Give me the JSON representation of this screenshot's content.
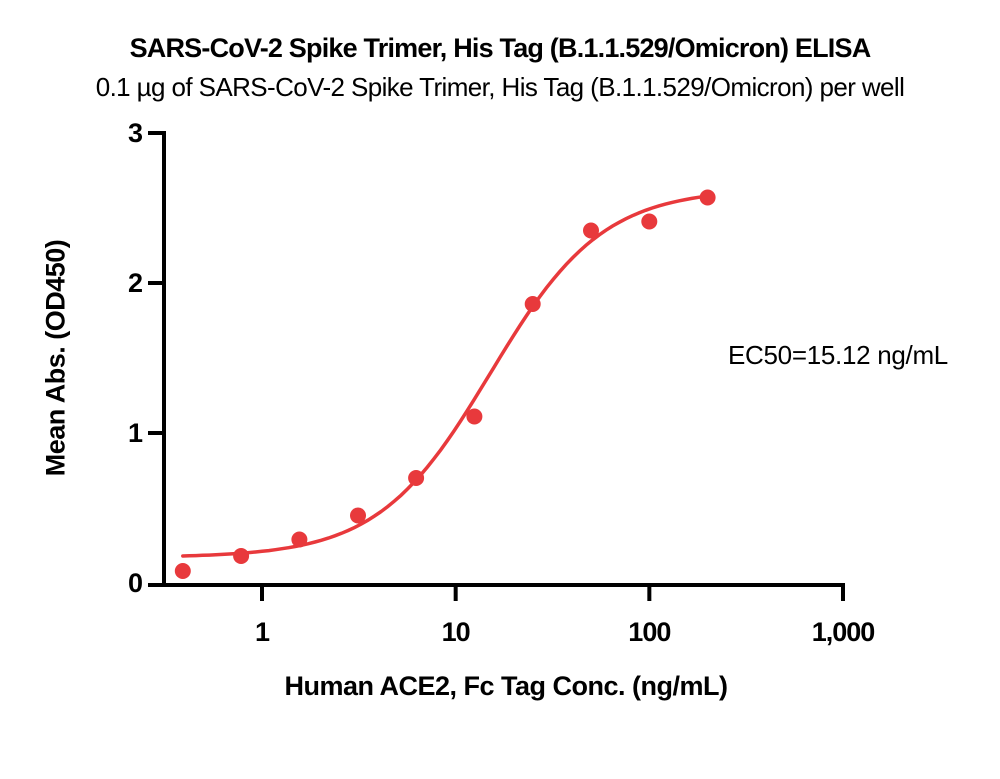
{
  "colors": {
    "series": "#E8393C",
    "axis": "#000000",
    "text": "#000000",
    "background": "#FFFFFF"
  },
  "chart_data": {
    "type": "scatter",
    "title": "SARS-CoV-2 Spike Trimer, His Tag (B.1.1.529/Omicron) ELISA",
    "subtitle": "0.1 µg of SARS-CoV-2 Spike Trimer, His Tag (B.1.1.529/Omicron) per well",
    "xlabel": "Human ACE2, Fc Tag Conc. (ng/mL)",
    "ylabel": "Mean Abs. (OD450)",
    "x_scale": "log10",
    "xlim": [
      0.31,
      1000
    ],
    "ylim": [
      0,
      3
    ],
    "grid": false,
    "legend": "none",
    "x_ticks": [
      {
        "value": 1,
        "label": "1"
      },
      {
        "value": 10,
        "label": "10"
      },
      {
        "value": 100,
        "label": "100"
      },
      {
        "value": 1000,
        "label": "1,000"
      }
    ],
    "y_ticks": [
      {
        "value": 0,
        "label": "0"
      },
      {
        "value": 1,
        "label": "1"
      },
      {
        "value": 2,
        "label": "2"
      },
      {
        "value": 3,
        "label": "3"
      }
    ],
    "series": [
      {
        "marker": "circle",
        "color": "#E8393C",
        "x": [
          0.39,
          0.78,
          1.56,
          3.13,
          6.25,
          12.5,
          25,
          50,
          100,
          200
        ],
        "y": [
          0.08,
          0.18,
          0.29,
          0.45,
          0.7,
          1.11,
          1.86,
          2.35,
          2.41,
          2.57
        ]
      }
    ],
    "fit_curve": {
      "model": "4PL",
      "bottom": 0.17,
      "top": 2.63,
      "ec50": 15.12,
      "hill": 1.5,
      "x_range": [
        0.39,
        210
      ]
    },
    "annotation": {
      "text": "EC50=15.12 ng/mL"
    }
  }
}
